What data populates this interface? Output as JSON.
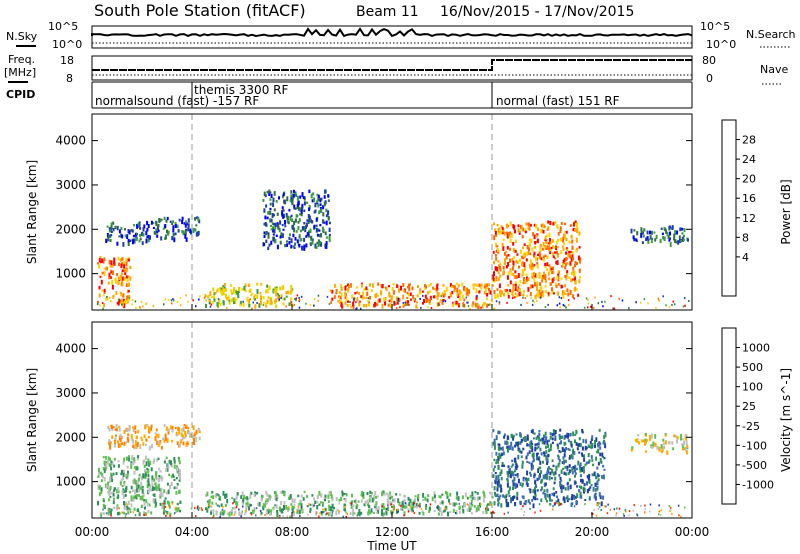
{
  "header": {
    "station": "South Pole Station (fitACF)",
    "beam": "Beam 11",
    "dates": "16/Nov/2015 - 17/Nov/2015"
  },
  "top_panels": {
    "nsky_label": "N.Sky",
    "nsky_ticks": [
      "10^5",
      "10^0"
    ],
    "nsearch_label": "N.Search",
    "nsearch_ticks": [
      "10^5",
      "10^0"
    ],
    "freq_label_1": "Freq.",
    "freq_label_2": "[MHz]",
    "freq_ticks": [
      "18",
      "8"
    ],
    "nave_label": "Nave",
    "nave_ticks": [
      "80",
      "0"
    ],
    "cpid_label": "CPID",
    "cpid_segments": [
      "normalsound (fast) -157 RF",
      "themis 3300 RF",
      "normal (fast) 151 RF"
    ],
    "mode_change_hours": [
      4,
      16
    ]
  },
  "chart_data": [
    {
      "type": "heatmap",
      "panel": "power",
      "xlabel": "",
      "ylabel": "Slant Range [km]",
      "xlim": [
        0,
        24
      ],
      "ylim": [
        180,
        4600
      ],
      "yticks": [
        1000,
        2000,
        3000,
        4000
      ],
      "colorbar": {
        "label": "Power [dB]",
        "ticks": [
          "28",
          "24",
          "20",
          "16",
          "12",
          "8",
          "4"
        ],
        "colors": [
          "#ff0000",
          "#ff6a00",
          "#ffaa00",
          "#ffd200",
          "#d8d800",
          "#3c9c3c",
          "#2f6f4a",
          "#1f3fa0",
          "#0000ff"
        ]
      },
      "echo_regions": [
        {
          "x": [
            0.2,
            1.5
          ],
          "y": [
            300,
            1400
          ],
          "level": "strong"
        },
        {
          "x": [
            0.5,
            2.5
          ],
          "y": [
            1700,
            2200
          ],
          "level": "weak"
        },
        {
          "x": [
            2.5,
            4.3
          ],
          "y": [
            1800,
            2300
          ],
          "level": "weak"
        },
        {
          "x": [
            4.5,
            8.0
          ],
          "y": [
            300,
            800
          ],
          "level": "medium"
        },
        {
          "x": [
            6.8,
            9.5
          ],
          "y": [
            1600,
            2900
          ],
          "level": "weak"
        },
        {
          "x": [
            9.5,
            16.0
          ],
          "y": [
            300,
            800
          ],
          "level": "strong"
        },
        {
          "x": [
            16.0,
            19.5
          ],
          "y": [
            500,
            2200
          ],
          "level": "strong"
        },
        {
          "x": [
            21.5,
            23.8
          ],
          "y": [
            1700,
            2100
          ],
          "level": "weak"
        }
      ]
    },
    {
      "type": "heatmap",
      "panel": "velocity",
      "xlabel": "Time UT",
      "ylabel": "Slant Range [km]",
      "xlim": [
        0,
        24
      ],
      "ylim": [
        180,
        4600
      ],
      "xticks": [
        "00:00",
        "04:00",
        "08:00",
        "12:00",
        "16:00",
        "20:00",
        "00:00"
      ],
      "yticks": [
        1000,
        2000,
        3000,
        4000
      ],
      "colorbar": {
        "label": "Velocity [m s^-1]",
        "ticks": [
          "1000",
          "500",
          "100",
          "25",
          "-25",
          "-100",
          "-500",
          "-1000"
        ],
        "colors": [
          "#1f3fa0",
          "#3c6fb0",
          "#2f8f5a",
          "#5fbf4f",
          "#c0c0c0",
          "#ffaa00",
          "#ff8000",
          "#ff3000",
          "#ff0000"
        ]
      },
      "echo_regions": [
        {
          "x": [
            0.2,
            3.5
          ],
          "y": [
            300,
            1600
          ],
          "velocity_class": "100"
        },
        {
          "x": [
            0.5,
            4.3
          ],
          "y": [
            1800,
            2300
          ],
          "velocity_class": "-100"
        },
        {
          "x": [
            4.5,
            16.0
          ],
          "y": [
            300,
            800
          ],
          "velocity_class": "25"
        },
        {
          "x": [
            16.0,
            20.5
          ],
          "y": [
            500,
            2200
          ],
          "velocity_class": "1000"
        },
        {
          "x": [
            21.5,
            23.8
          ],
          "y": [
            1700,
            2100
          ],
          "velocity_class": "-25"
        }
      ]
    }
  ]
}
